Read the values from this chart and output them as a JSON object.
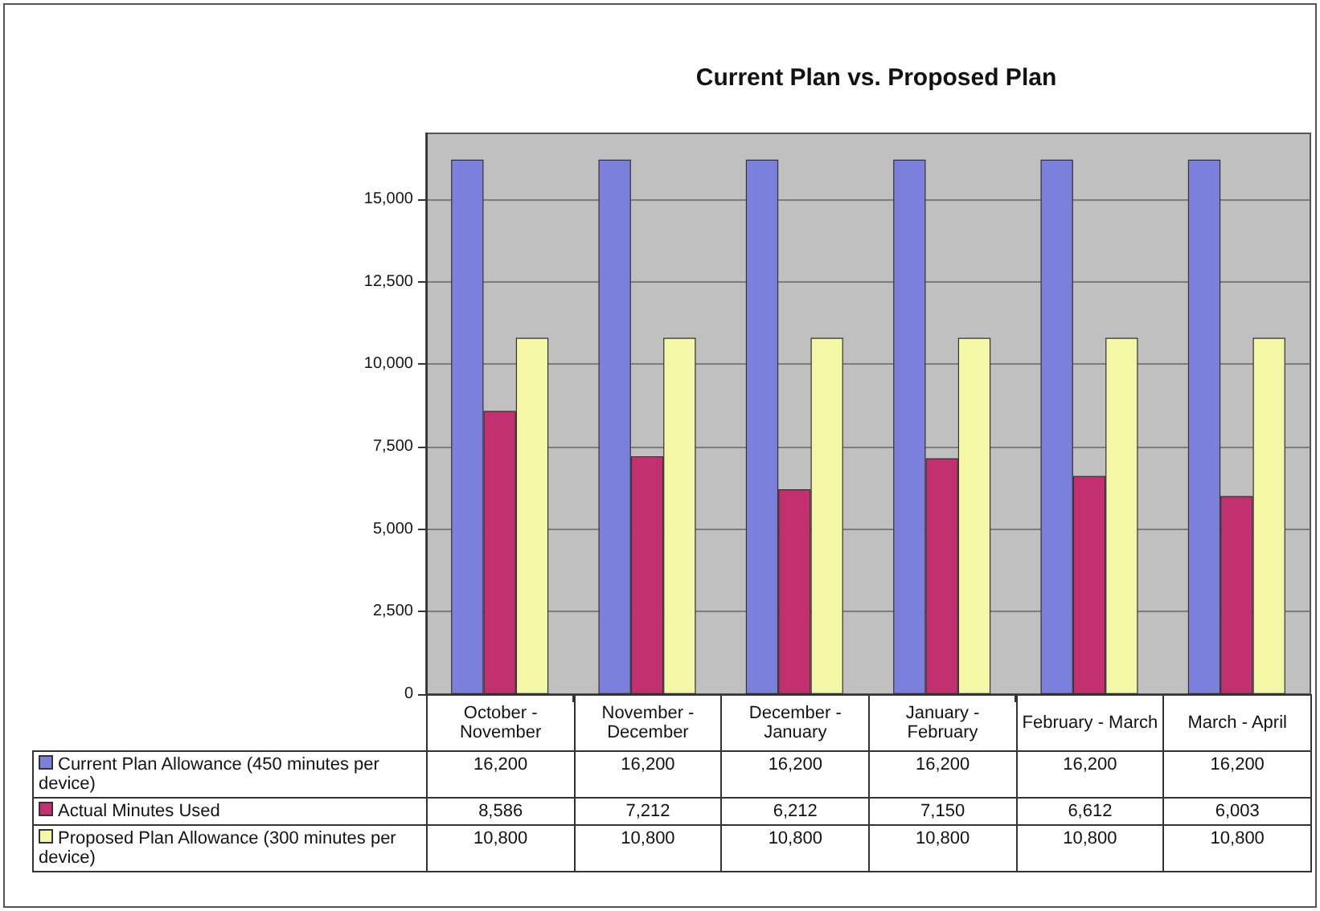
{
  "chart_data": {
    "type": "bar",
    "title": "Current Plan vs. Proposed Plan",
    "categories": [
      "October - November",
      "November - December",
      "December - January",
      "January - February",
      "February - March",
      "March - April"
    ],
    "series": [
      {
        "name": "Current Plan Allowance (450 minutes per device)",
        "color": "#7b80dc",
        "values": [
          16200,
          16200,
          16200,
          16200,
          16200,
          16200
        ],
        "value_labels": [
          "16,200",
          "16,200",
          "16,200",
          "16,200",
          "16,200",
          "16,200"
        ]
      },
      {
        "name": "Actual Minutes Used",
        "color": "#c2306f",
        "values": [
          8586,
          7212,
          6212,
          7150,
          6612,
          6003
        ],
        "value_labels": [
          "8,586",
          "7,212",
          "6,212",
          "7,150",
          "6,612",
          "6,003"
        ]
      },
      {
        "name": "Proposed Plan Allowance (300 minutes per device)",
        "color": "#f4f8a6",
        "values": [
          10800,
          10800,
          10800,
          10800,
          10800,
          10800
        ],
        "value_labels": [
          "10,800",
          "10,800",
          "10,800",
          "10,800",
          "10,800",
          "10,800"
        ]
      }
    ],
    "ylim": [
      0,
      17000
    ],
    "yticks": [
      0,
      {
        "value": 2500,
        "label": "2,500"
      },
      {
        "value": 5000,
        "label": "5,000"
      },
      {
        "value": 7500,
        "label": "7,500"
      },
      {
        "value": 10000,
        "label": "10,000"
      },
      {
        "value": 12500,
        "label": "12,500"
      },
      {
        "value": 15000,
        "label": "15,000"
      }
    ],
    "grid": "y",
    "legend": "bottom"
  }
}
